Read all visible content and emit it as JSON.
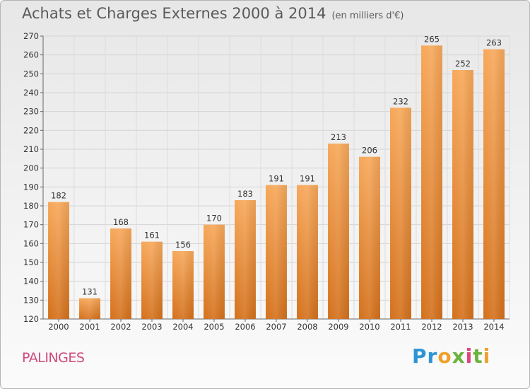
{
  "header": {
    "title": "Achats et Charges Externes 2000 à 2014",
    "subtitle": "(en milliers d'€)"
  },
  "footer": {
    "place": "PALINGES",
    "logo_letters": [
      {
        "ch": "P",
        "color": "#2e95d3"
      },
      {
        "ch": "r",
        "color": "#2e95d3"
      },
      {
        "ch": "o",
        "color": "#f0a02a"
      },
      {
        "ch": "x",
        "color": "#6cb33e"
      },
      {
        "ch": "i",
        "color": "#e2447a"
      },
      {
        "ch": "t",
        "color": "#6cb33e"
      },
      {
        "ch": "i",
        "color": "#f0a02a"
      }
    ]
  },
  "chart_data": {
    "type": "bar",
    "title": "Achats et Charges Externes 2000 à 2014",
    "subtitle": "(en milliers d'€)",
    "categories": [
      "2000",
      "2001",
      "2002",
      "2003",
      "2004",
      "2005",
      "2006",
      "2007",
      "2008",
      "2009",
      "2010",
      "2011",
      "2012",
      "2013",
      "2014"
    ],
    "values": [
      182,
      131,
      168,
      161,
      156,
      170,
      183,
      191,
      191,
      213,
      206,
      232,
      265,
      252,
      263
    ],
    "ylim": [
      120,
      270
    ],
    "yticks": [
      120,
      130,
      140,
      150,
      160,
      170,
      180,
      190,
      200,
      210,
      220,
      230,
      240,
      250,
      260,
      270
    ],
    "grid": true,
    "legend": "none",
    "bar_color_top": "#f7a85a",
    "bar_color_bottom": "#d4711c"
  }
}
